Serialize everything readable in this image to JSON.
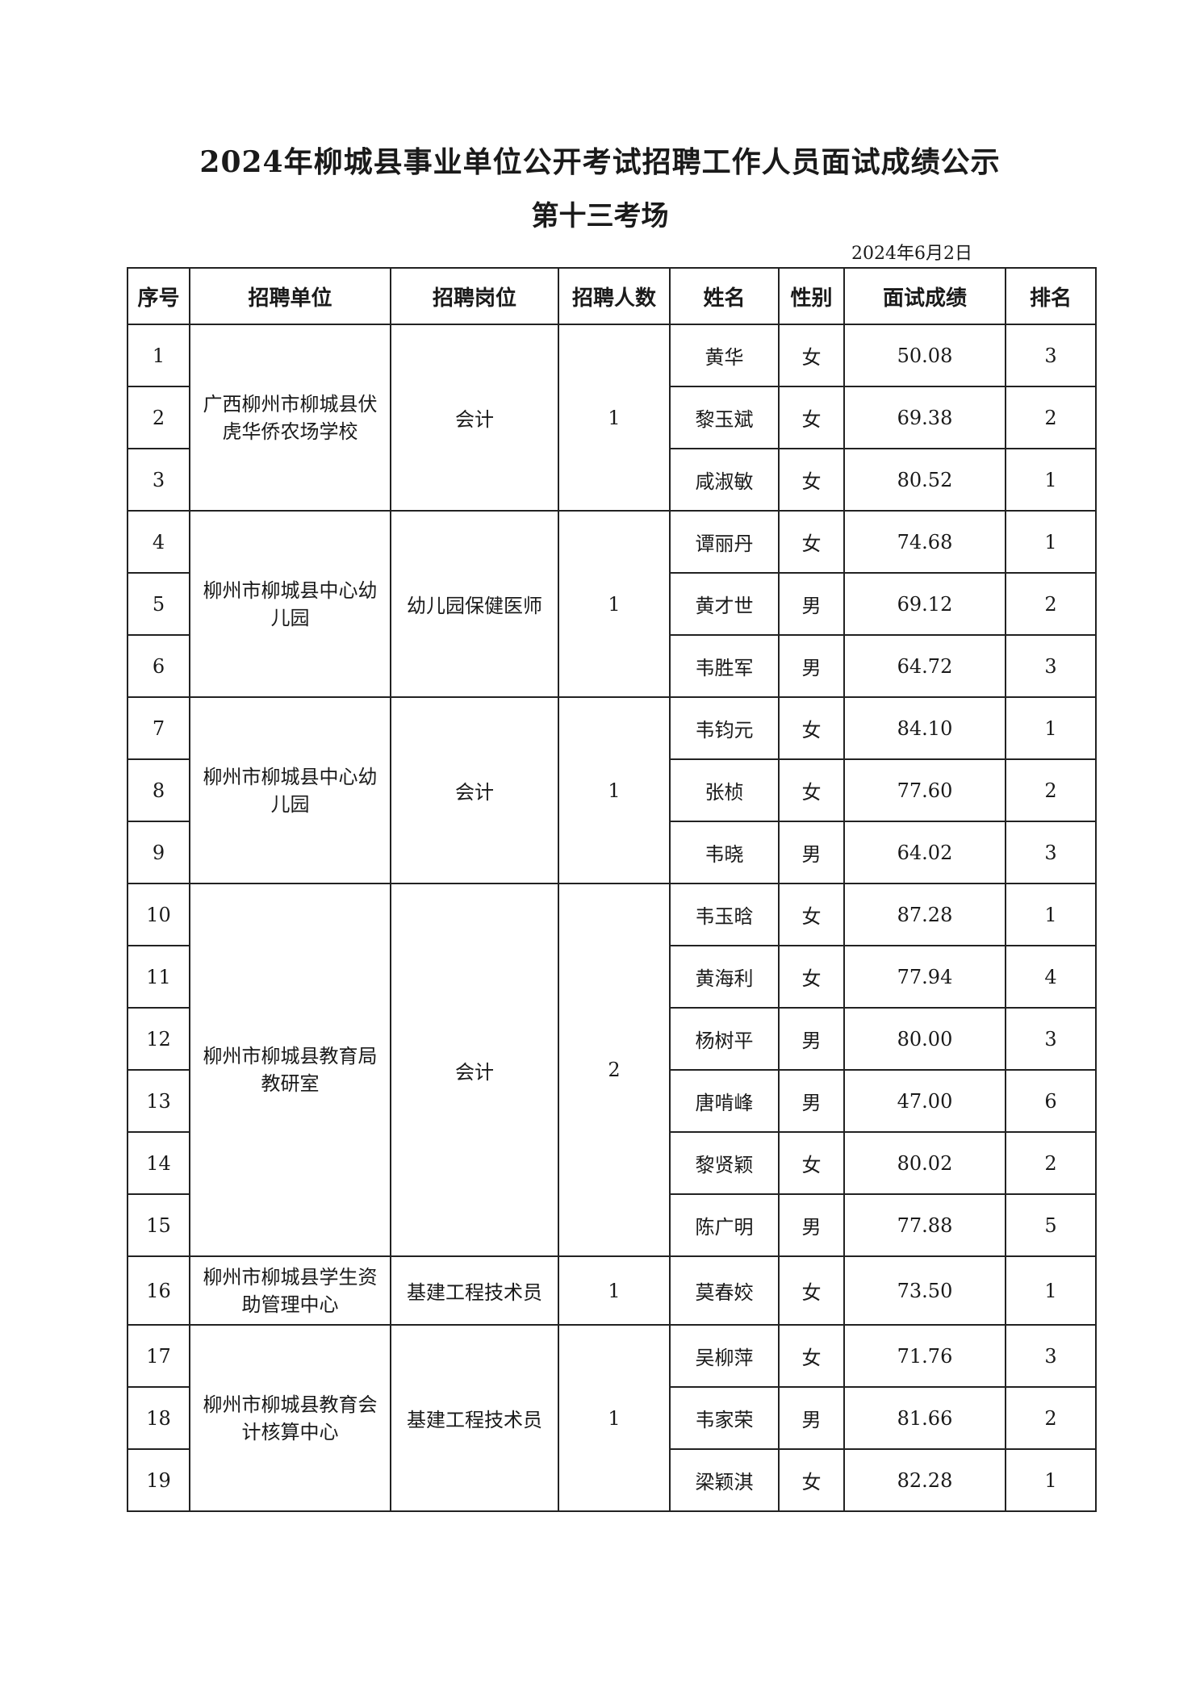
{
  "title": "2024年柳城县事业单位公开考试招聘工作人员面试成绩公示",
  "subtitle": "第十三考场",
  "date": "2024年6月2日",
  "headers": [
    "序号",
    "招聘单位",
    "招聘岗位",
    "招聘人数",
    "姓名",
    "性别",
    "面试成绩",
    "排名"
  ],
  "groups": [
    {
      "unit": "广西柳州市柳城县伏虎华侨农场学校",
      "post": "会计",
      "count": "1",
      "rows": [
        {
          "no": "1",
          "name": "黄华",
          "gender": "女",
          "score": "50.08",
          "rank": "3"
        },
        {
          "no": "2",
          "name": "黎玉斌",
          "gender": "女",
          "score": "69.38",
          "rank": "2"
        },
        {
          "no": "3",
          "name": "咸淑敏",
          "gender": "女",
          "score": "80.52",
          "rank": "1"
        }
      ]
    },
    {
      "unit": "柳州市柳城县中心幼儿园",
      "post": "幼儿园保健医师",
      "count": "1",
      "rows": [
        {
          "no": "4",
          "name": "谭丽丹",
          "gender": "女",
          "score": "74.68",
          "rank": "1"
        },
        {
          "no": "5",
          "name": "黄才世",
          "gender": "男",
          "score": "69.12",
          "rank": "2"
        },
        {
          "no": "6",
          "name": "韦胜军",
          "gender": "男",
          "score": "64.72",
          "rank": "3"
        }
      ]
    },
    {
      "unit": "柳州市柳城县中心幼儿园",
      "post": "会计",
      "count": "1",
      "rows": [
        {
          "no": "7",
          "name": "韦钧元",
          "gender": "女",
          "score": "84.10",
          "rank": "1"
        },
        {
          "no": "8",
          "name": "张桢",
          "gender": "女",
          "score": "77.60",
          "rank": "2"
        },
        {
          "no": "9",
          "name": "韦晓",
          "gender": "男",
          "score": "64.02",
          "rank": "3"
        }
      ]
    },
    {
      "unit": "柳州市柳城县教育局教研室",
      "post": "会计",
      "count": "2",
      "rows": [
        {
          "no": "10",
          "name": "韦玉晗",
          "gender": "女",
          "score": "87.28",
          "rank": "1"
        },
        {
          "no": "11",
          "name": "黄海利",
          "gender": "女",
          "score": "77.94",
          "rank": "4"
        },
        {
          "no": "12",
          "name": "杨树平",
          "gender": "男",
          "score": "80.00",
          "rank": "3"
        },
        {
          "no": "13",
          "name": "唐啃峰",
          "gender": "男",
          "score": "47.00",
          "rank": "6"
        },
        {
          "no": "14",
          "name": "黎贤颖",
          "gender": "女",
          "score": "80.02",
          "rank": "2"
        },
        {
          "no": "15",
          "name": "陈广明",
          "gender": "男",
          "score": "77.88",
          "rank": "5"
        }
      ]
    },
    {
      "unit": "柳州市柳城县学生资助管理中心",
      "post": "基建工程技术员",
      "count": "1",
      "rows": [
        {
          "no": "16",
          "name": "莫春姣",
          "gender": "女",
          "score": "73.50",
          "rank": "1"
        }
      ]
    },
    {
      "unit": "柳州市柳城县教育会计核算中心",
      "post": "基建工程技术员",
      "count": "1",
      "rows": [
        {
          "no": "17",
          "name": "吴柳萍",
          "gender": "女",
          "score": "71.76",
          "rank": "3"
        },
        {
          "no": "18",
          "name": "韦家荣",
          "gender": "男",
          "score": "81.66",
          "rank": "2"
        },
        {
          "no": "19",
          "name": "梁颖淇",
          "gender": "女",
          "score": "82.28",
          "rank": "1"
        }
      ]
    }
  ]
}
